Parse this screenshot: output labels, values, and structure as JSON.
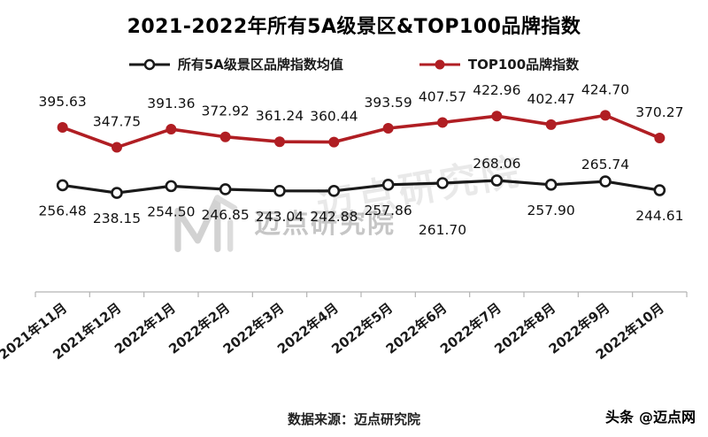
{
  "title": "2021-2022年所有5A级景区&TOP100品牌指数",
  "watermark": {
    "text": "迈点研究院",
    "text2": "迈点研究院"
  },
  "footer": {
    "source": "数据来源：迈点研究院"
  },
  "credit": {
    "brand": "头条",
    "handle": "@迈点网"
  },
  "chart_data": {
    "type": "line",
    "title": "2021-2022年所有5A级景区&TOP100品牌指数",
    "categories": [
      "2021年11月",
      "2021年12月",
      "2022年1月",
      "2022年2月",
      "2022年3月",
      "2022年4月",
      "2022年5月",
      "2022年6月",
      "2022年7月",
      "2022年8月",
      "2022年9月",
      "2022年10月"
    ],
    "series": [
      {
        "name": "所有5A级景区品牌指数均值",
        "color": "#1a1a1a",
        "marker": "open-circle",
        "marker_fill": "#ffffff",
        "stroke_width": 3.2,
        "values": [
          256.48,
          238.15,
          254.5,
          246.85,
          243.04,
          242.88,
          257.86,
          261.7,
          268.06,
          257.9,
          265.74,
          244.61
        ],
        "label_dy": [
          34,
          34,
          34,
          34,
          34,
          34,
          34,
          58,
          -14,
          34,
          -14,
          34
        ]
      },
      {
        "name": "TOP100品牌指数",
        "color": "#b01e23",
        "marker": "filled-circle",
        "marker_fill": "#b01e23",
        "stroke_width": 3.6,
        "values": [
          395.63,
          347.75,
          391.36,
          372.92,
          361.24,
          360.44,
          393.59,
          407.57,
          422.96,
          402.47,
          424.7,
          370.27
        ],
        "label_dy": [
          -24,
          -24,
          -24,
          -24,
          -24,
          -24,
          -24,
          -24,
          -24,
          -24,
          -24,
          -24
        ]
      }
    ],
    "ylim": [
      0,
      600
    ],
    "grid": false,
    "legend_position": "top",
    "axis_color": "#b3b3b3",
    "label_color": "#111111",
    "xlabel": "",
    "ylabel": ""
  }
}
